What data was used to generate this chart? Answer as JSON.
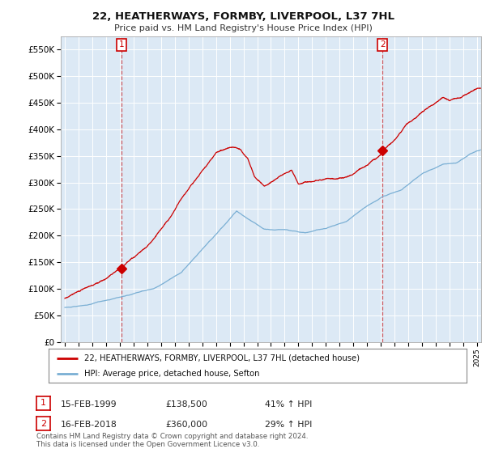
{
  "title": "22, HEATHERWAYS, FORMBY, LIVERPOOL, L37 7HL",
  "subtitle": "Price paid vs. HM Land Registry's House Price Index (HPI)",
  "red_label": "22, HEATHERWAYS, FORMBY, LIVERPOOL, L37 7HL (detached house)",
  "blue_label": "HPI: Average price, detached house, Sefton",
  "sale1_date": "15-FEB-1999",
  "sale1_price": "£138,500",
  "sale1_hpi": "41% ↑ HPI",
  "sale2_date": "16-FEB-2018",
  "sale2_price": "£360,000",
  "sale2_hpi": "29% ↑ HPI",
  "footnote": "Contains HM Land Registry data © Crown copyright and database right 2024.\nThis data is licensed under the Open Government Licence v3.0.",
  "ylim": [
    0,
    575000
  ],
  "xlim_start": 1994.7,
  "xlim_end": 2025.3,
  "bg_color": "#ffffff",
  "plot_bg_color": "#dce9f5",
  "red_color": "#cc0000",
  "blue_color": "#7aafd4",
  "grid_color": "#ffffff",
  "sale1_t": 1999.12,
  "sale2_t": 2018.12,
  "sale1_price_val": 138500,
  "sale2_price_val": 360000
}
